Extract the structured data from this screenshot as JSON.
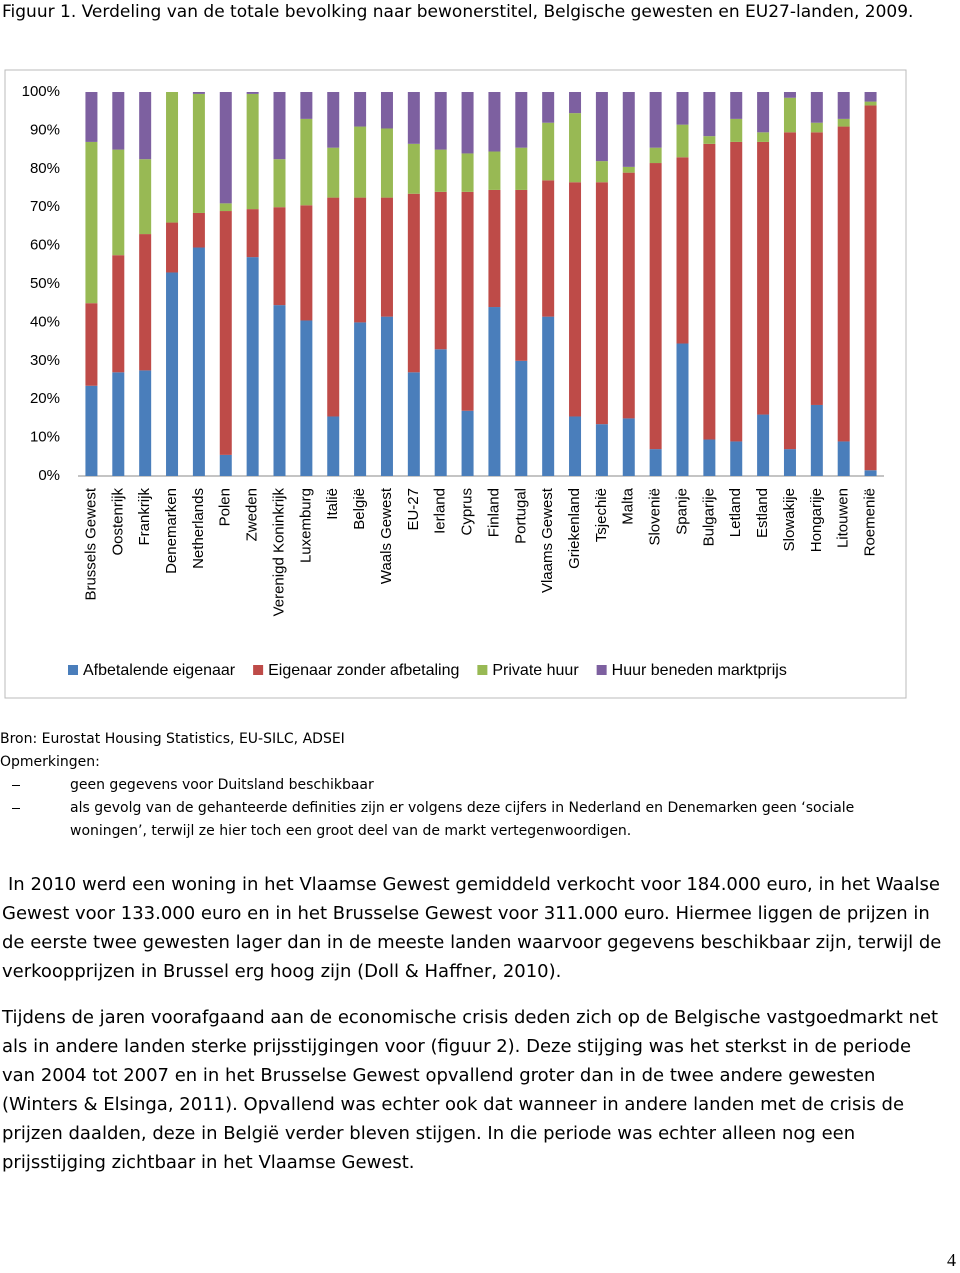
{
  "header": {
    "title": "Figuur 1. Verdeling van de totale bevolking naar bewonerstitel, Belgische gewesten en EU27-landen, 2009."
  },
  "chart_data": {
    "type": "stacked_bar",
    "categories": [
      "Brussels Gewest",
      "Oostenrijk",
      "Frankrijk",
      "Denemarken",
      "Netherlands",
      "Polen",
      "Zweden",
      "Verenigd Koninkrijk",
      "Luxemburg",
      "Italië",
      "België",
      "Waals Gewest",
      "EU-27",
      "Ierland",
      "Cyprus",
      "Finland",
      "Portugal",
      "Vlaams Gewest",
      "Griekenland",
      "Tsjechië",
      "Malta",
      "Slovenië",
      "Spanje",
      "Bulgarije",
      "Letland",
      "Estland",
      "Slowakije",
      "Hongarije",
      "Litouwen",
      "Roemenië"
    ],
    "series": [
      {
        "name": "Afbetalende eigenaar",
        "color": "#4a7ebb",
        "values": [
          23.5,
          27,
          27.5,
          53,
          59.5,
          5.5,
          57,
          44.5,
          40.5,
          15.5,
          40,
          41.5,
          27,
          33,
          17,
          44,
          30,
          41.5,
          15.5,
          13.5,
          15,
          7,
          34.5,
          9.5,
          9,
          16,
          7,
          18.5,
          9,
          1.5
        ]
      },
      {
        "name": "Eigenaar zonder afbetaling",
        "color": "#be4b48",
        "values": [
          21.5,
          30.5,
          35.5,
          13,
          9,
          63.5,
          12.5,
          25.5,
          30,
          57,
          32.5,
          31,
          46.5,
          41,
          57,
          30.5,
          44.5,
          35.5,
          61,
          63,
          64,
          74.5,
          48.5,
          77,
          78,
          71,
          82.5,
          71,
          82,
          95
        ]
      },
      {
        "name": "Private huur",
        "color": "#98b954",
        "values": [
          42,
          27.5,
          19.5,
          34,
          31,
          2,
          30,
          12.5,
          22.5,
          13,
          18.5,
          18,
          13,
          11,
          10,
          10,
          11,
          15,
          18,
          5.5,
          1.5,
          4,
          8.5,
          2,
          6,
          2.5,
          9,
          2.5,
          2,
          1
        ]
      },
      {
        "name": "Huur beneden marktprijs",
        "color": "#7d60a0",
        "values": [
          13,
          15,
          17.5,
          0,
          0.5,
          29,
          0.5,
          17.5,
          7,
          14.5,
          9,
          9.5,
          13.5,
          15,
          16,
          15.5,
          14.5,
          8,
          5.5,
          18,
          19.5,
          14.5,
          8.5,
          11.5,
          7,
          10.5,
          1.5,
          8,
          7,
          2.5
        ]
      }
    ],
    "ylim": [
      0,
      100
    ],
    "yticks": [
      {
        "value": 0,
        "label": "0%"
      },
      {
        "value": 10,
        "label": "10%"
      },
      {
        "value": 20,
        "label": "20%"
      },
      {
        "value": 30,
        "label": "30%"
      },
      {
        "value": 40,
        "label": "40%"
      },
      {
        "value": 50,
        "label": "50%"
      },
      {
        "value": 60,
        "label": "60%"
      },
      {
        "value": 70,
        "label": "70%"
      },
      {
        "value": 80,
        "label": "80%"
      },
      {
        "value": 90,
        "label": "90%"
      },
      {
        "value": 100,
        "label": "100%"
      }
    ],
    "grid": false,
    "legend": "bottom"
  },
  "notes": {
    "source": "Bron: Eurostat Housing Statistics, EU-SILC, ADSEI",
    "heading": "Opmerkingen:",
    "items": [
      "geen gegevens voor Duitsland beschikbaar",
      "als gevolg van de gehanteerde definities zijn er volgens deze cijfers in Nederland en Denemarken geen ‘sociale woningen’, terwijl ze hier toch een groot deel van de markt vertegenwoordigen."
    ]
  },
  "paragraphs": [
    "In 2010 werd een woning in het Vlaamse Gewest gemiddeld verkocht voor 184.000 euro, in het Waalse Gewest voor 133.000 euro en in het Brusselse Gewest voor 311.000 euro. Hiermee liggen de prijzen in de eerste twee gewesten lager dan in de meeste landen waarvoor gegevens beschikbaar zijn, terwijl de verkoopprijzen in Brussel erg hoog zijn (Doll & Haffner, 2010).",
    "Tijdens de jaren voorafgaand aan de economische crisis deden zich op de Belgische vastgoedmarkt net als in andere landen sterke prijsstijgingen voor (figuur 2). Deze stijging was het sterkst in de periode van 2004 tot 2007 en in het Brusselse Gewest opvallend groter dan in de twee andere gewesten (Winters & Elsinga, 2011). Opvallend was echter ook dat wanneer in andere landen met de crisis de prijzen daalden, deze in België verder bleven stijgen. In die periode was echter alleen nog een prijsstijging zichtbaar in het Vlaamse Gewest."
  ],
  "page_number": "4"
}
